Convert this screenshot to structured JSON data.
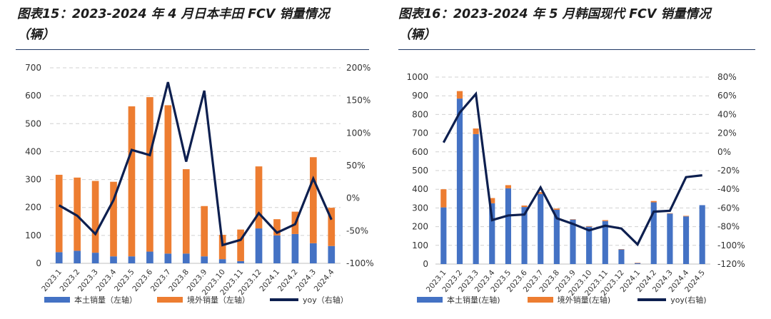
{
  "colors": {
    "domestic": "#4472c4",
    "overseas": "#ed7d31",
    "yoy": "#0d1f4f",
    "grid": "#d0d0d0",
    "rule": "#1f3864"
  },
  "charts": [
    {
      "title": "图表15：2023-2024 年 4 月日本丰田 FCV 销量情况\n（辆）",
      "legend": {
        "domestic": "本土销量（左轴）",
        "overseas": "境外销量（左轴）",
        "yoy": "yoy（右轴）"
      },
      "left_ticks": [
        "0",
        "100",
        "200",
        "300",
        "400",
        "500",
        "600",
        "700"
      ],
      "right_ticks": [
        "-100%",
        "-50%",
        "0%",
        "50%",
        "100%",
        "150%",
        "200%"
      ]
    },
    {
      "title": "图表16：2023-2024 年 5 月韩国现代 FCV 销量情况\n（辆）",
      "legend": {
        "domestic": "本土销量(左轴)",
        "overseas": "境外销量(左轴)",
        "yoy": "yoy(右轴)"
      },
      "left_ticks": [
        "0",
        "100",
        "200",
        "300",
        "400",
        "500",
        "600",
        "700",
        "800",
        "900",
        "1000"
      ],
      "right_ticks": [
        "-120%",
        "-100%",
        "-80%",
        "-60%",
        "-40%",
        "-20%",
        "0%",
        "20%",
        "40%",
        "60%",
        "80%"
      ]
    }
  ],
  "chart_data": [
    {
      "type": "bar",
      "stacked": true,
      "categories": [
        "2023.1",
        "2023.2",
        "2023.3",
        "2023.4",
        "2023.5",
        "2023.6",
        "2023.7",
        "2023.8",
        "2023.9",
        "2023.10",
        "2023.11",
        "2023.12",
        "2024.1",
        "2024.2",
        "2024.3",
        "2024.4"
      ],
      "series": [
        {
          "name": "本土销量（左轴）",
          "axis": "left",
          "values": [
            40,
            45,
            38,
            25,
            25,
            42,
            35,
            35,
            25,
            15,
            8,
            125,
            100,
            105,
            72,
            62
          ]
        },
        {
          "name": "境外销量（左轴）",
          "axis": "left",
          "values": [
            277,
            262,
            257,
            267,
            537,
            553,
            531,
            302,
            180,
            87,
            113,
            222,
            58,
            80,
            308,
            137
          ]
        },
        {
          "name": "yoy（右轴）",
          "axis": "right",
          "type": "line",
          "values": [
            -11,
            -27,
            -55,
            -3,
            74,
            66,
            178,
            56,
            165,
            -72,
            -64,
            -23,
            -53,
            -40,
            30,
            -33
          ]
        }
      ],
      "ylim_left": [
        0,
        700
      ],
      "ylim_right": [
        -100,
        200
      ],
      "grid": true,
      "legend_position": "bottom"
    },
    {
      "type": "bar",
      "stacked": true,
      "categories": [
        "2023.1",
        "2023.2",
        "2023.3",
        "2023.4",
        "2023.5",
        "2023.6",
        "2023.7",
        "2023.8",
        "2023.9",
        "2023.10",
        "2023.11",
        "2023.12",
        "2024.1",
        "2024.2",
        "2024.3",
        "2024.4",
        "2024.5"
      ],
      "series": [
        {
          "name": "本土销量(左轴)",
          "axis": "left",
          "values": [
            303,
            885,
            695,
            325,
            405,
            305,
            375,
            290,
            238,
            200,
            230,
            78,
            5,
            330,
            270,
            255,
            315
          ]
        },
        {
          "name": "境外销量(左轴)",
          "axis": "left",
          "values": [
            97,
            40,
            30,
            28,
            17,
            8,
            10,
            7,
            2,
            3,
            5,
            2,
            2,
            7,
            2,
            3,
            0
          ]
        },
        {
          "name": "yoy(右轴)",
          "axis": "right",
          "type": "line",
          "values": [
            10,
            42,
            62,
            -73,
            -68,
            -67,
            -38,
            -71,
            -77,
            -84,
            -79,
            -82,
            -99,
            -64,
            -63,
            -27,
            -25
          ]
        }
      ],
      "ylim_left": [
        0,
        1000
      ],
      "ylim_right": [
        -120,
        80
      ],
      "grid": true,
      "legend_position": "bottom"
    }
  ]
}
